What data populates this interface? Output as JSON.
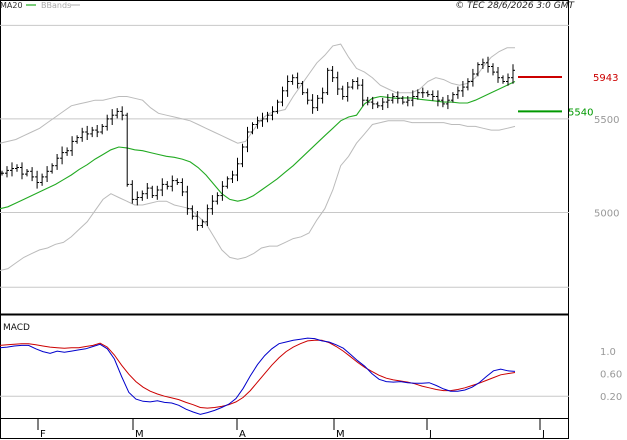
{
  "header": {
    "legend_ma": "MA20",
    "legend_bb": "BBands",
    "copyright": "© TEC 28/6/2026 3:0 GMT"
  },
  "colors": {
    "ma": "#22aa22",
    "bbands": "#bbbbbb",
    "price": "#000000",
    "macd": "#0000cc",
    "signal": "#cc0000",
    "resistance": "#cc0000",
    "support": "#009900",
    "grid": "#c8c8c8"
  },
  "chart_data": [
    {
      "type": "line",
      "title": "",
      "subtitle": "price (bars), MA20, Bollinger Bands",
      "ylim": [
        4500,
        6050
      ],
      "yticks": [
        5000,
        5500
      ],
      "x_ticks": [
        "F",
        "M",
        "A",
        "M",
        "J",
        "J"
      ],
      "levels": [
        {
          "label": "5943",
          "value": 5943,
          "kind": "resistance"
        },
        {
          "label": "5540",
          "value": 5540,
          "kind": "support"
        }
      ],
      "series": [
        {
          "name": "MA20",
          "values": [
            5020,
            5030,
            5050,
            5070,
            5090,
            5110,
            5130,
            5150,
            5175,
            5200,
            5230,
            5255,
            5285,
            5310,
            5335,
            5350,
            5345,
            5335,
            5330,
            5320,
            5310,
            5300,
            5295,
            5285,
            5270,
            5240,
            5200,
            5150,
            5100,
            5070,
            5060,
            5070,
            5090,
            5120,
            5150,
            5180,
            5215,
            5250,
            5290,
            5330,
            5370,
            5410,
            5450,
            5490,
            5510,
            5520,
            5580,
            5610,
            5620,
            5615,
            5610,
            5612,
            5612,
            5605,
            5600,
            5595,
            5590,
            5590,
            5585,
            5585,
            5600,
            5620,
            5640,
            5660,
            5680,
            5700
          ]
        },
        {
          "name": "BB upper",
          "values": [
            5370,
            5380,
            5390,
            5410,
            5430,
            5450,
            5480,
            5510,
            5540,
            5570,
            5580,
            5590,
            5600,
            5600,
            5610,
            5620,
            5620,
            5610,
            5600,
            5560,
            5530,
            5520,
            5510,
            5500,
            5490,
            5470,
            5450,
            5430,
            5410,
            5390,
            5370,
            5380,
            5440,
            5500,
            5530,
            5540,
            5550,
            5620,
            5680,
            5740,
            5800,
            5840,
            5890,
            5900,
            5830,
            5770,
            5750,
            5720,
            5680,
            5660,
            5640,
            5640,
            5640,
            5660,
            5700,
            5720,
            5710,
            5690,
            5680,
            5690,
            5720,
            5780,
            5830,
            5860,
            5880,
            5880
          ]
        },
        {
          "name": "BB lower",
          "values": [
            4690,
            4700,
            4730,
            4760,
            4780,
            4800,
            4810,
            4830,
            4840,
            4870,
            4910,
            4950,
            5010,
            5070,
            5100,
            5080,
            5060,
            5040,
            5040,
            5050,
            5060,
            5060,
            5040,
            5030,
            5020,
            4980,
            4940,
            4870,
            4800,
            4760,
            4750,
            4760,
            4780,
            4810,
            4820,
            4820,
            4840,
            4860,
            4870,
            4890,
            4960,
            5020,
            5120,
            5250,
            5300,
            5370,
            5420,
            5470,
            5480,
            5490,
            5490,
            5490,
            5480,
            5480,
            5480,
            5480,
            5480,
            5470,
            5470,
            5460,
            5460,
            5450,
            5440,
            5440,
            5450,
            5460
          ]
        },
        {
          "name": "Price",
          "values": [
            5210,
            5225,
            5235,
            5240,
            5205,
            5220,
            5190,
            5160,
            5190,
            5220,
            5250,
            5290,
            5320,
            5330,
            5380,
            5400,
            5430,
            5420,
            5440,
            5430,
            5460,
            5500,
            5520,
            5540,
            5520,
            5150,
            5070,
            5080,
            5100,
            5130,
            5090,
            5120,
            5150,
            5140,
            5170,
            5160,
            5110,
            5020,
            4980,
            4930,
            4950,
            5020,
            5060,
            5090,
            5140,
            5180,
            5200,
            5260,
            5350,
            5430,
            5470,
            5490,
            5500,
            5520,
            5540,
            5590,
            5650,
            5700,
            5720,
            5690,
            5640,
            5600,
            5560,
            5610,
            5640,
            5760,
            5720,
            5660,
            5620,
            5670,
            5700,
            5680,
            5600,
            5590,
            5580,
            5570,
            5590,
            5600,
            5620,
            5610,
            5590,
            5600,
            5620,
            5640,
            5640,
            5630,
            5620,
            5600,
            5580,
            5600,
            5630,
            5650,
            5670,
            5700,
            5740,
            5790,
            5800,
            5780,
            5750,
            5720,
            5700,
            5720,
            5760
          ]
        }
      ]
    },
    {
      "type": "line",
      "title": "MACD",
      "ylim": [
        -0.15,
        1.55
      ],
      "yticks": [
        0.2,
        0.6,
        1.0
      ],
      "ytick_labels": [
        "0.20",
        "0.60",
        "1.0"
      ],
      "series": [
        {
          "name": "MACD",
          "values": [
            1.06,
            1.07,
            1.09,
            1.1,
            1.1,
            1.04,
            0.99,
            0.96,
            1.0,
            0.98,
            1.0,
            1.02,
            1.04,
            1.08,
            1.12,
            1.04,
            0.86,
            0.55,
            0.27,
            0.15,
            0.11,
            0.1,
            0.12,
            0.09,
            0.08,
            0.04,
            -0.03,
            -0.08,
            -0.12,
            -0.09,
            -0.05,
            0.0,
            0.06,
            0.16,
            0.34,
            0.56,
            0.76,
            0.92,
            1.04,
            1.13,
            1.16,
            1.19,
            1.21,
            1.23,
            1.22,
            1.18,
            1.16,
            1.11,
            1.05,
            0.94,
            0.83,
            0.73,
            0.6,
            0.5,
            0.46,
            0.45,
            0.46,
            0.44,
            0.43,
            0.43,
            0.44,
            0.39,
            0.33,
            0.29,
            0.29,
            0.31,
            0.36,
            0.44,
            0.55,
            0.65,
            0.68,
            0.65,
            0.64
          ]
        },
        {
          "name": "Signal",
          "values": [
            1.1,
            1.11,
            1.12,
            1.13,
            1.13,
            1.11,
            1.09,
            1.07,
            1.06,
            1.05,
            1.06,
            1.06,
            1.08,
            1.1,
            1.14,
            1.07,
            0.93,
            0.75,
            0.59,
            0.46,
            0.36,
            0.29,
            0.24,
            0.2,
            0.17,
            0.14,
            0.09,
            0.05,
            0.0,
            -0.01,
            0.0,
            0.02,
            0.05,
            0.1,
            0.18,
            0.3,
            0.45,
            0.6,
            0.75,
            0.88,
            0.99,
            1.07,
            1.13,
            1.18,
            1.19,
            1.19,
            1.15,
            1.08,
            1.0,
            0.9,
            0.8,
            0.71,
            0.64,
            0.57,
            0.52,
            0.49,
            0.47,
            0.45,
            0.42,
            0.38,
            0.35,
            0.32,
            0.3,
            0.3,
            0.32,
            0.35,
            0.39,
            0.43,
            0.48,
            0.53,
            0.58,
            0.6,
            0.62
          ]
        }
      ]
    }
  ]
}
